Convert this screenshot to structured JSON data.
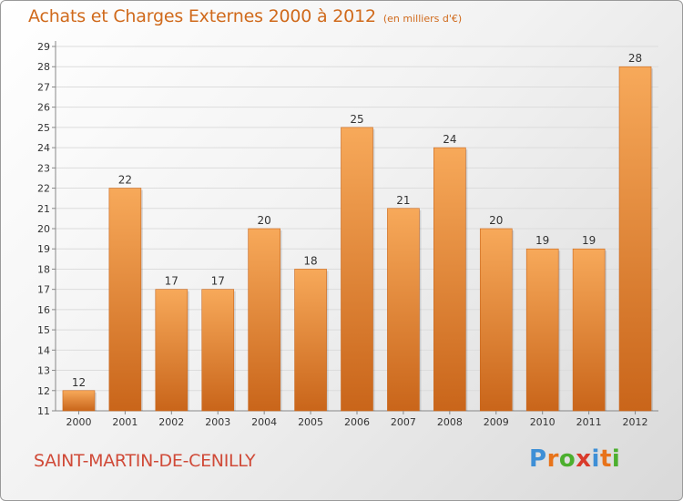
{
  "header": {
    "title": "Achats et Charges Externes 2000 à 2012",
    "subtitle": "(en milliers d'€)"
  },
  "footer": {
    "commune": "SAINT-MARTIN-DE-CENILLY",
    "brand": "Proxiti",
    "brand_colors": [
      "#3e8fd6",
      "#e8731a",
      "#4caf2e",
      "#d93a2b",
      "#3e8fd6",
      "#e8731a",
      "#4caf2e"
    ]
  },
  "colors": {
    "bar_light": "#f7a95a",
    "bar_dark": "#c9651a",
    "title": "#d06a1c",
    "commune": "#d04a38",
    "grid": "#dcdcdc"
  },
  "chart_data": {
    "type": "bar",
    "title": "Achats et Charges Externes 2000 à 2012",
    "subtitle": "(en milliers d'€)",
    "categories": [
      "2000",
      "2001",
      "2002",
      "2003",
      "2004",
      "2005",
      "2006",
      "2007",
      "2008",
      "2009",
      "2010",
      "2011",
      "2012"
    ],
    "values": [
      12,
      22,
      17,
      17,
      20,
      18,
      25,
      21,
      24,
      20,
      19,
      19,
      28
    ],
    "ylim": [
      11,
      29
    ],
    "yticks": [
      11,
      12,
      13,
      14,
      15,
      16,
      17,
      18,
      19,
      20,
      21,
      22,
      23,
      24,
      25,
      26,
      27,
      28,
      29
    ],
    "grid": true,
    "data_labels": true
  }
}
